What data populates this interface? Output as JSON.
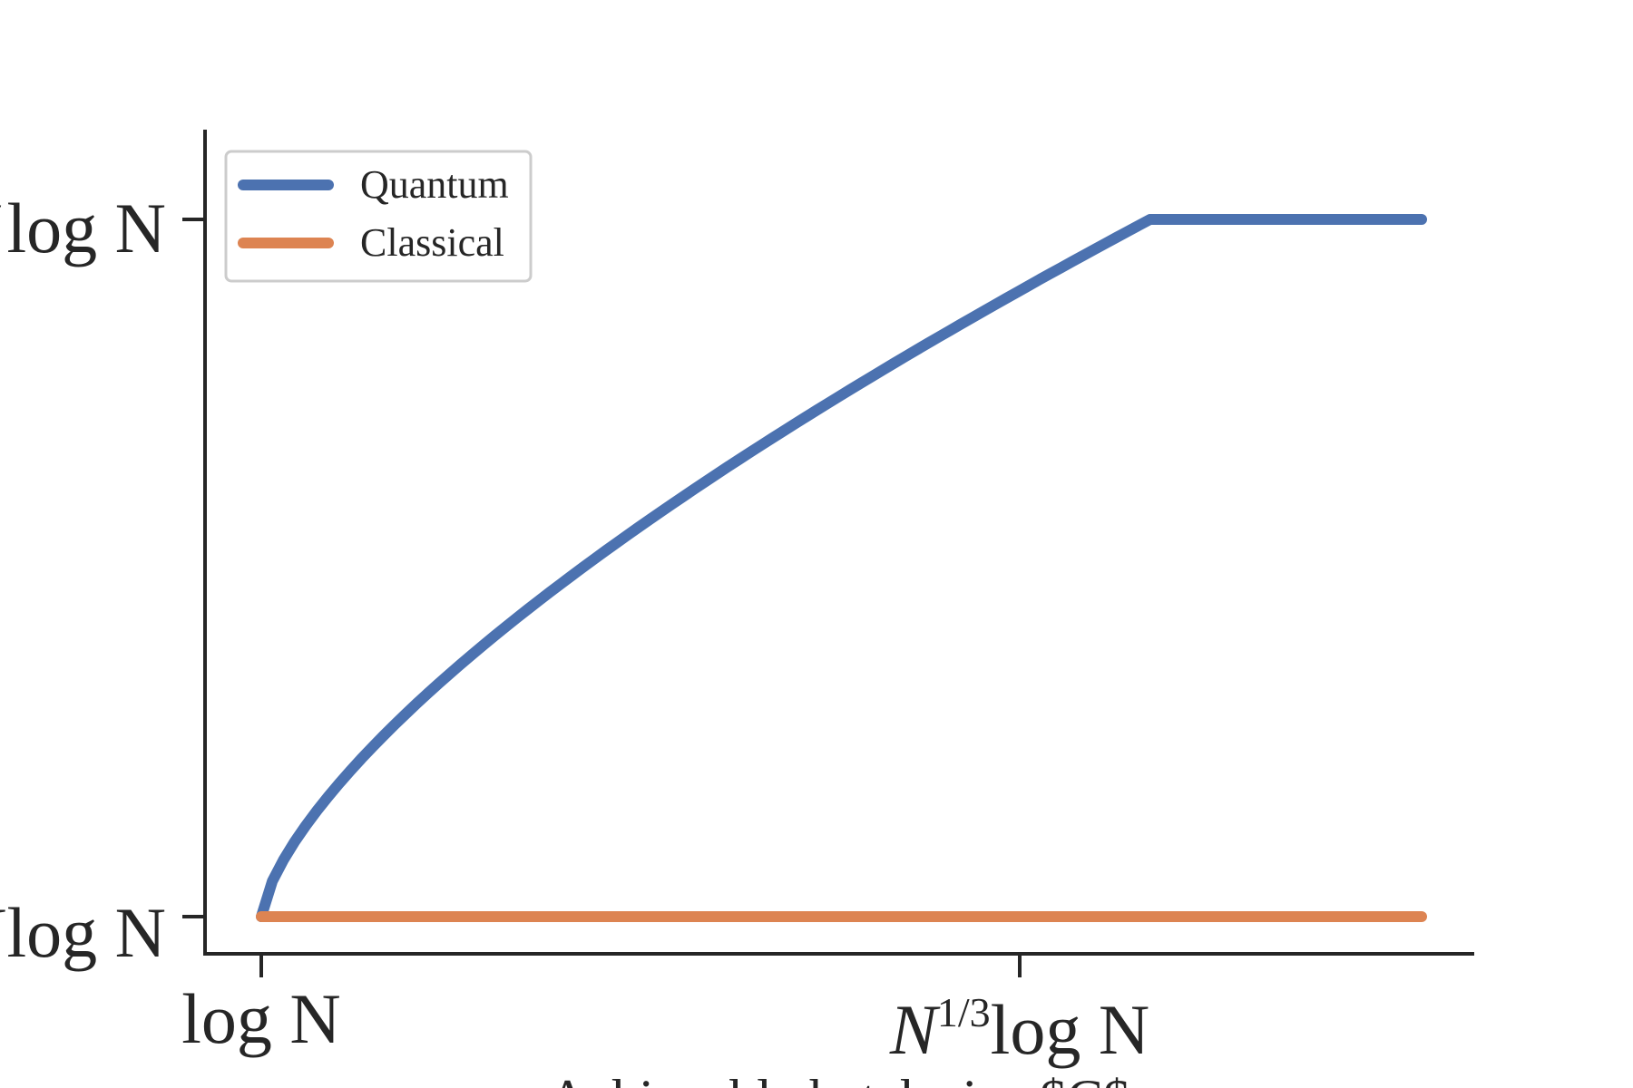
{
  "chart_data": {
    "type": "line",
    "title": "",
    "xlabel": "Achievable batch size $C$",
    "ylabel": "",
    "x_scale": "log",
    "y_scale": "log",
    "x_ticks": [
      {
        "label_main": "log N",
        "label_sup": ""
      },
      {
        "label_main": "log N",
        "label_pre": "N",
        "label_sup": "1/3"
      }
    ],
    "y_ticks": [
      {
        "label_main": "log N",
        "label_pre": "√N"
      },
      {
        "label_main": "log N",
        "label_pre": "N"
      }
    ],
    "x_tick_values": [
      1,
      1.0
    ],
    "series": [
      {
        "name": "Quantum",
        "color": "#4c72b0",
        "description_points": [
          {
            "x": 0.0,
            "y": 0.0
          },
          {
            "x": 0.1,
            "y": 0.206
          },
          {
            "x": 0.2,
            "y": 0.357
          },
          {
            "x": 0.3,
            "y": 0.486
          },
          {
            "x": 0.4,
            "y": 0.603
          },
          {
            "x": 0.5,
            "y": 0.71
          },
          {
            "x": 0.6,
            "y": 0.81
          },
          {
            "x": 0.7,
            "y": 0.906
          },
          {
            "x": 0.766,
            "y": 1.0
          },
          {
            "x": 1.0,
            "y": 1.0
          }
        ]
      },
      {
        "name": "Classical",
        "color": "#dd8452",
        "description_points": [
          {
            "x": 0.0,
            "y": 0.0
          },
          {
            "x": 1.0,
            "y": 0.0
          }
        ]
      }
    ],
    "legend": {
      "position": "top-left",
      "entries": [
        "Quantum",
        "Classical"
      ]
    },
    "grid": false
  }
}
